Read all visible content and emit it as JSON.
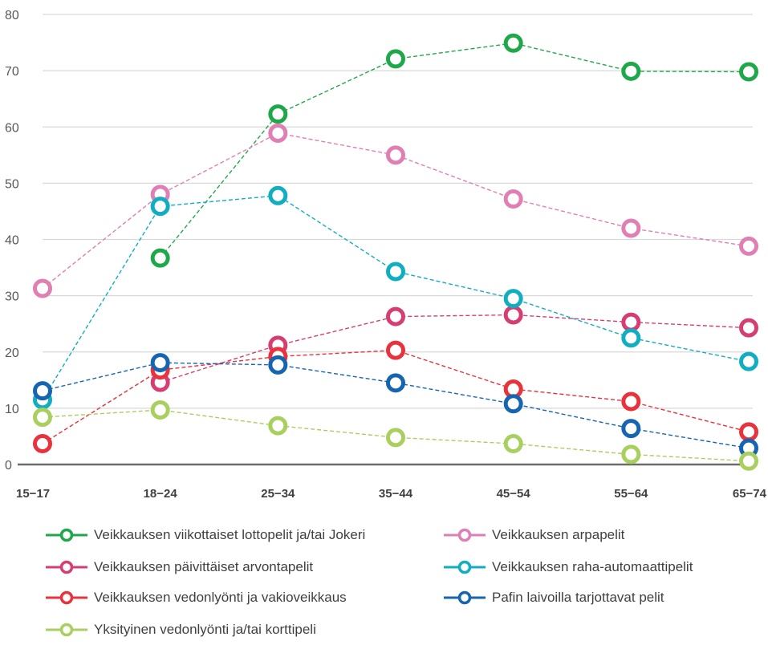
{
  "chart_data": {
    "type": "line",
    "categories": [
      "15−17",
      "18−24",
      "25−34",
      "35−44",
      "45−54",
      "55−64",
      "65−74"
    ],
    "ylim": [
      0,
      80
    ],
    "yticks": [
      0,
      10,
      20,
      30,
      40,
      50,
      60,
      70,
      80
    ],
    "grid": true,
    "legend_position": "bottom",
    "series": [
      {
        "name": "Veikkauksen viikottaiset lottopelit ja/tai Jokeri",
        "color": "#1fa84a",
        "values": [
          null,
          36.7,
          62.3,
          72.1,
          74.9,
          69.9,
          69.8
        ]
      },
      {
        "name": "Veikkauksen arpapelit",
        "color": "#e07fb4",
        "values": [
          31.3,
          48.0,
          58.9,
          55.0,
          47.2,
          42.0,
          38.8
        ]
      },
      {
        "name": "Veikkauksen päivittäiset arvontapelit",
        "color": "#d63e73",
        "values": [
          null,
          14.6,
          21.2,
          26.3,
          26.6,
          25.3,
          24.3
        ]
      },
      {
        "name": "Veikkauksen raha-automaattipelit",
        "color": "#11aec1",
        "values": [
          11.5,
          45.9,
          47.8,
          34.3,
          29.5,
          22.5,
          18.3
        ]
      },
      {
        "name": "Veikkauksen vedonlyönti ja vakioveikkaus",
        "color": "#e8323c",
        "values": [
          3.7,
          16.8,
          19.2,
          20.3,
          13.4,
          11.2,
          5.8
        ]
      },
      {
        "name": "Pafin laivoilla tarjottavat pelit",
        "color": "#1565b0",
        "values": [
          13.1,
          18.1,
          17.7,
          14.5,
          10.8,
          6.4,
          2.9
        ]
      },
      {
        "name": "Yksityinen vedonlyönti ja/tai korttipeli",
        "color": "#a9cf5e",
        "values": [
          8.4,
          9.7,
          6.9,
          4.8,
          3.7,
          1.8,
          0.6
        ]
      }
    ]
  }
}
